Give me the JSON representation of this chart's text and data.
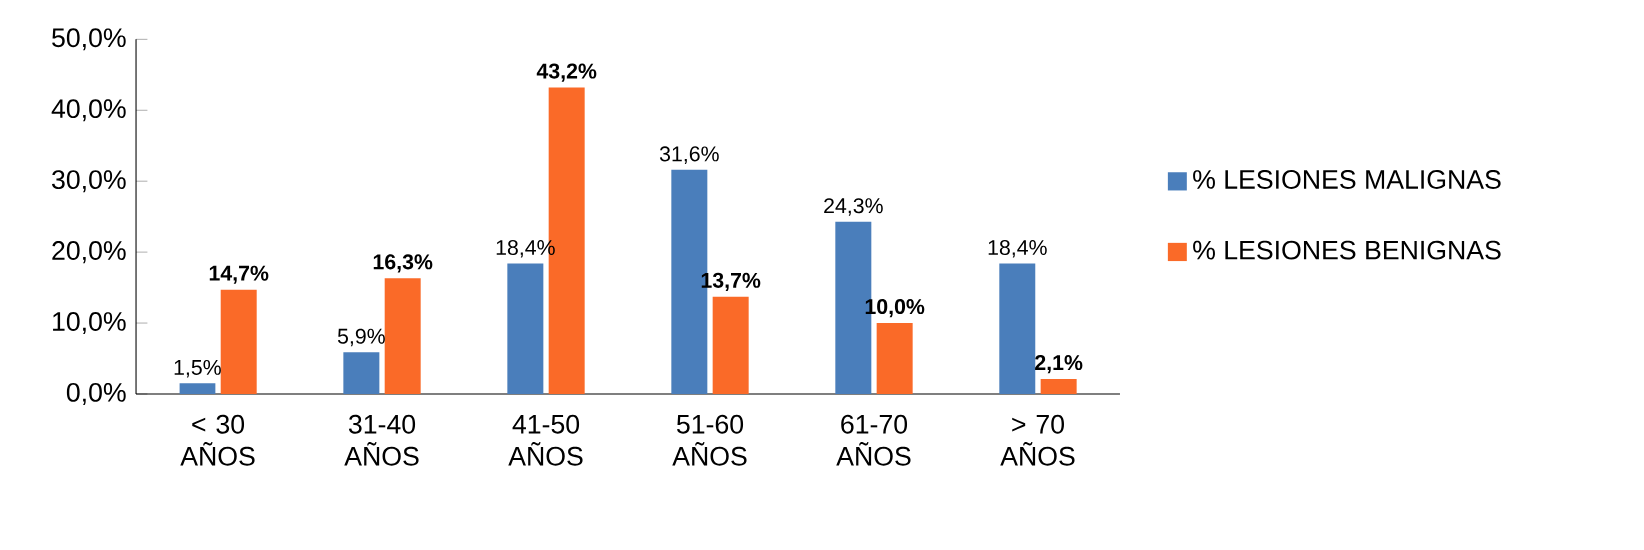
{
  "chart_data": {
    "type": "bar",
    "categories": [
      "< 30 AÑOS",
      "31-40 AÑOS",
      "41-50 AÑOS",
      "51-60 AÑOS",
      "61-70 AÑOS",
      "> 70 AÑOS"
    ],
    "series": [
      {
        "name": "% LESIONES MALIGNAS",
        "color": "#4a7ebb",
        "values": [
          1.5,
          5.9,
          18.4,
          31.6,
          24.3,
          18.4
        ],
        "value_labels": [
          "1,5%",
          "5,9%",
          "18,4%",
          "31,6%",
          "24,3%",
          "18,4%"
        ]
      },
      {
        "name": "% LESIONES BENIGNAS",
        "color": "#fa6a28",
        "values": [
          14.7,
          16.3,
          43.2,
          13.7,
          10.0,
          2.1
        ],
        "value_labels": [
          "14,7%",
          "16,3%",
          "43,2%",
          "13,7%",
          "10,0%",
          "2,1%"
        ]
      }
    ],
    "ylim": [
      0,
      50
    ],
    "yticks": [
      {
        "value": 0,
        "label": "0,0%"
      },
      {
        "value": 10,
        "label": "10,0%"
      },
      {
        "value": 20,
        "label": "20,0%"
      },
      {
        "value": 30,
        "label": "30,0%"
      },
      {
        "value": 40,
        "label": "40,0%"
      },
      {
        "value": 50,
        "label": "50,0%"
      }
    ],
    "grid": false,
    "legend": "right"
  }
}
